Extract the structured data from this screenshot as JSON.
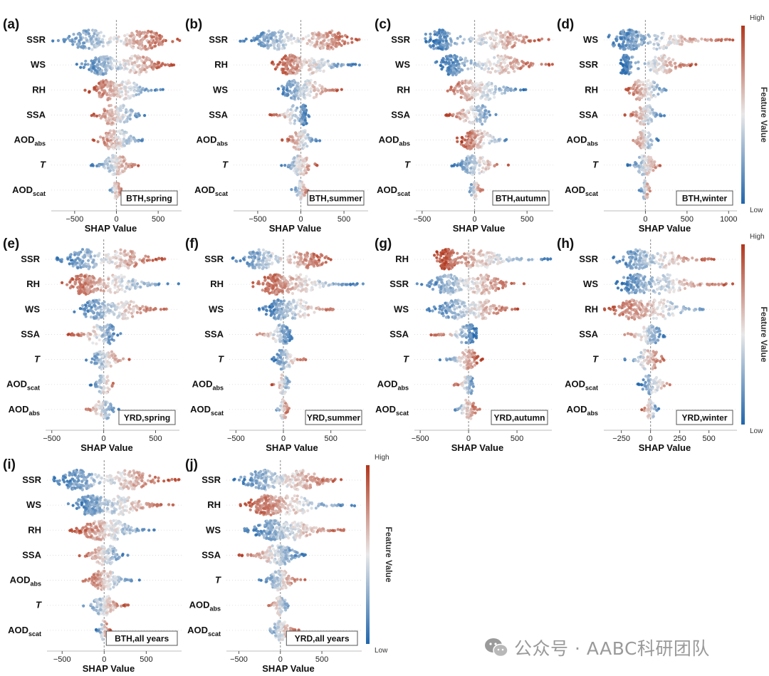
{
  "figure": {
    "colorbar_label": "Feature Value",
    "colorbar_high": "High",
    "colorbar_low": "Low",
    "xlabel": "SHAP Value",
    "colors": {
      "low": "#2166ac",
      "mid": "#e8e8e8",
      "high": "#b2361c"
    }
  },
  "watermark": {
    "text": "公众号 · AABC科研团队",
    "icon": "wechat-icon"
  },
  "chart_data": [
    {
      "id": "a",
      "panel_label": "(a)",
      "title": "BTH,spring",
      "type": "beeswarm",
      "xlabel": "SHAP Value",
      "xticks": [
        -500,
        0,
        500
      ],
      "xticklabels": [
        "−500",
        "0",
        "500"
      ],
      "xlim": [
        -780,
        780
      ],
      "features": [
        {
          "label": "SSR",
          "sub": "",
          "italic": false,
          "min": -780,
          "max": 760,
          "peak_neg": -320,
          "peak_pos": 320
        },
        {
          "label": "WS",
          "sub": "",
          "italic": false,
          "min": -480,
          "max": 720,
          "peak_neg": -180,
          "peak_pos": 250
        },
        {
          "label": "RH",
          "sub": "",
          "italic": false,
          "min": -380,
          "max": 560,
          "peak_neg": -120,
          "peak_pos": 120
        },
        {
          "label": "SSA",
          "sub": "",
          "italic": false,
          "min": -300,
          "max": 380,
          "peak_neg": -60,
          "peak_pos": 80
        },
        {
          "label": "AOD",
          "sub": "abs",
          "italic": false,
          "min": -300,
          "max": 380,
          "peak_neg": -60,
          "peak_pos": 60
        },
        {
          "label": "T",
          "sub": "",
          "italic": true,
          "min": -320,
          "max": 300,
          "peak_neg": -30,
          "peak_pos": 30
        },
        {
          "label": "AOD",
          "sub": "scat",
          "italic": false,
          "min": -120,
          "max": 80,
          "peak_neg": -10,
          "peak_pos": 10
        }
      ]
    },
    {
      "id": "b",
      "panel_label": "(b)",
      "title": "BTH,summer",
      "type": "beeswarm",
      "xlabel": "SHAP Value",
      "xticks": [
        -500,
        0,
        500
      ],
      "xticklabels": [
        "−500",
        "0",
        "500"
      ],
      "xlim": [
        -780,
        780
      ],
      "features": [
        {
          "label": "SSR",
          "sub": "",
          "italic": false,
          "min": -760,
          "max": 700,
          "peak_neg": -300,
          "peak_pos": 300
        },
        {
          "label": "RH",
          "sub": "",
          "italic": false,
          "min": -360,
          "max": 700,
          "peak_neg": -120,
          "peak_pos": 150
        },
        {
          "label": "WS",
          "sub": "",
          "italic": false,
          "min": -300,
          "max": 500,
          "peak_neg": -80,
          "peak_pos": 100
        },
        {
          "label": "SSA",
          "sub": "",
          "italic": false,
          "min": -380,
          "max": 120,
          "peak_neg": -80,
          "peak_pos": 40
        },
        {
          "label": "AOD",
          "sub": "abs",
          "italic": false,
          "min": -220,
          "max": 240,
          "peak_neg": -40,
          "peak_pos": 40
        },
        {
          "label": "T",
          "sub": "",
          "italic": true,
          "min": -250,
          "max": 220,
          "peak_neg": -30,
          "peak_pos": 30
        },
        {
          "label": "AOD",
          "sub": "scat",
          "italic": false,
          "min": -120,
          "max": 120,
          "peak_neg": -10,
          "peak_pos": 10
        }
      ]
    },
    {
      "id": "c",
      "panel_label": "(c)",
      "title": "BTH,autumn",
      "type": "beeswarm",
      "xlabel": "SHAP Value",
      "xticks": [
        -500,
        0,
        500
      ],
      "xticklabels": [
        "−500",
        "0",
        "500"
      ],
      "xlim": [
        -560,
        750
      ],
      "features": [
        {
          "label": "SSR",
          "sub": "",
          "italic": false,
          "min": -500,
          "max": 720,
          "peak_neg": -320,
          "peak_pos": 250
        },
        {
          "label": "WS",
          "sub": "",
          "italic": false,
          "min": -400,
          "max": 750,
          "peak_neg": -200,
          "peak_pos": 250
        },
        {
          "label": "RH",
          "sub": "",
          "italic": false,
          "min": -360,
          "max": 520,
          "peak_neg": -80,
          "peak_pos": 120
        },
        {
          "label": "SSA",
          "sub": "",
          "italic": false,
          "min": -280,
          "max": 220,
          "peak_neg": -50,
          "peak_pos": 60
        },
        {
          "label": "AOD",
          "sub": "abs",
          "italic": false,
          "min": -180,
          "max": 420,
          "peak_neg": -30,
          "peak_pos": 60
        },
        {
          "label": "T",
          "sub": "",
          "italic": true,
          "min": -240,
          "max": 340,
          "peak_neg": -30,
          "peak_pos": 30
        },
        {
          "label": "AOD",
          "sub": "scat",
          "italic": false,
          "min": -80,
          "max": 80,
          "peak_neg": -10,
          "peak_pos": 10
        }
      ]
    },
    {
      "id": "d",
      "panel_label": "(d)",
      "title": "BTH,winter",
      "type": "beeswarm",
      "xlabel": "SHAP Value",
      "xticks": [
        0,
        500,
        1000
      ],
      "xticklabels": [
        "0",
        "500",
        "1000"
      ],
      "xlim": [
        -500,
        1100
      ],
      "features": [
        {
          "label": "WS",
          "sub": "",
          "italic": false,
          "min": -480,
          "max": 1080,
          "peak_neg": -200,
          "peak_pos": 200
        },
        {
          "label": "SSR",
          "sub": "",
          "italic": false,
          "min": -340,
          "max": 640,
          "peak_neg": -230,
          "peak_pos": 200
        },
        {
          "label": "RH",
          "sub": "",
          "italic": false,
          "min": -260,
          "max": 330,
          "peak_neg": -80,
          "peak_pos": 60
        },
        {
          "label": "SSA",
          "sub": "",
          "italic": false,
          "min": -250,
          "max": 250,
          "peak_neg": -40,
          "peak_pos": 40
        },
        {
          "label": "AOD",
          "sub": "abs",
          "italic": false,
          "min": -200,
          "max": 180,
          "peak_neg": -30,
          "peak_pos": 30
        },
        {
          "label": "T",
          "sub": "",
          "italic": true,
          "min": -240,
          "max": 250,
          "peak_neg": -30,
          "peak_pos": 30
        },
        {
          "label": "AOD",
          "sub": "scat",
          "italic": false,
          "min": -80,
          "max": 80,
          "peak_neg": -10,
          "peak_pos": 10
        }
      ]
    },
    {
      "id": "e",
      "panel_label": "(e)",
      "title": "YRD,spring",
      "type": "beeswarm",
      "xlabel": "SHAP Value",
      "xticks": [
        -500,
        0,
        500
      ],
      "xticklabels": [
        "−500",
        "0",
        "500"
      ],
      "xlim": [
        -560,
        730
      ],
      "features": [
        {
          "label": "SSR",
          "sub": "",
          "italic": false,
          "min": -480,
          "max": 600,
          "peak_neg": -180,
          "peak_pos": 200
        },
        {
          "label": "RH",
          "sub": "",
          "italic": false,
          "min": -430,
          "max": 730,
          "peak_neg": -180,
          "peak_pos": 120
        },
        {
          "label": "WS",
          "sub": "",
          "italic": false,
          "min": -320,
          "max": 640,
          "peak_neg": -80,
          "peak_pos": 200
        },
        {
          "label": "SSA",
          "sub": "",
          "italic": false,
          "min": -350,
          "max": 180,
          "peak_neg": -80,
          "peak_pos": 50
        },
        {
          "label": "T",
          "sub": "",
          "italic": true,
          "min": -180,
          "max": 260,
          "peak_neg": -30,
          "peak_pos": 40
        },
        {
          "label": "AOD",
          "sub": "scat",
          "italic": false,
          "min": -140,
          "max": 140,
          "peak_neg": -20,
          "peak_pos": 20
        },
        {
          "label": "AOD",
          "sub": "abs",
          "italic": false,
          "min": -200,
          "max": 150,
          "peak_neg": -20,
          "peak_pos": 20
        }
      ]
    },
    {
      "id": "f",
      "panel_label": "(f)",
      "title": "YRD,summer",
      "type": "beeswarm",
      "xlabel": "SHAP Value",
      "xticks": [
        -500,
        0,
        500
      ],
      "xticklabels": [
        "−500",
        "0",
        "500"
      ],
      "xlim": [
        -570,
        870
      ],
      "features": [
        {
          "label": "SSR",
          "sub": "",
          "italic": false,
          "min": -560,
          "max": 520,
          "peak_neg": -250,
          "peak_pos": 250
        },
        {
          "label": "RH",
          "sub": "",
          "italic": false,
          "min": -320,
          "max": 880,
          "peak_neg": -80,
          "peak_pos": 150
        },
        {
          "label": "WS",
          "sub": "",
          "italic": false,
          "min": -260,
          "max": 660,
          "peak_neg": -50,
          "peak_pos": 150
        },
        {
          "label": "SSA",
          "sub": "",
          "italic": false,
          "min": -340,
          "max": 110,
          "peak_neg": -40,
          "peak_pos": 20
        },
        {
          "label": "T",
          "sub": "",
          "italic": true,
          "min": -120,
          "max": 260,
          "peak_neg": -20,
          "peak_pos": 30
        },
        {
          "label": "AOD",
          "sub": "abs",
          "italic": false,
          "min": -130,
          "max": 110,
          "peak_neg": -15,
          "peak_pos": 15
        },
        {
          "label": "AOD",
          "sub": "scat",
          "italic": false,
          "min": -100,
          "max": 70,
          "peak_neg": -10,
          "peak_pos": 10
        }
      ]
    },
    {
      "id": "g",
      "panel_label": "(g)",
      "title": "YRD,autumn",
      "type": "beeswarm",
      "xlabel": "SHAP Value",
      "xticks": [
        -500,
        0,
        500
      ],
      "xticklabels": [
        "−500",
        "0",
        "500"
      ],
      "xlim": [
        -560,
        860
      ],
      "features": [
        {
          "label": "RH",
          "sub": "",
          "italic": false,
          "min": -360,
          "max": 860,
          "peak_neg": -220,
          "peak_pos": 120
        },
        {
          "label": "SSR",
          "sub": "",
          "italic": false,
          "min": -560,
          "max": 580,
          "peak_neg": -200,
          "peak_pos": 150
        },
        {
          "label": "WS",
          "sub": "",
          "italic": false,
          "min": -440,
          "max": 540,
          "peak_neg": -150,
          "peak_pos": 150
        },
        {
          "label": "SSA",
          "sub": "",
          "italic": false,
          "min": -400,
          "max": 80,
          "peak_neg": -40,
          "peak_pos": 20
        },
        {
          "label": "T",
          "sub": "",
          "italic": true,
          "min": -330,
          "max": 150,
          "peak_neg": -30,
          "peak_pos": 20
        },
        {
          "label": "AOD",
          "sub": "abs",
          "italic": false,
          "min": -160,
          "max": 80,
          "peak_neg": -15,
          "peak_pos": 15
        },
        {
          "label": "AOD",
          "sub": "scat",
          "italic": false,
          "min": -200,
          "max": 120,
          "peak_neg": -15,
          "peak_pos": 15
        }
      ]
    },
    {
      "id": "h",
      "panel_label": "(h)",
      "title": "YRD,winter",
      "type": "beeswarm",
      "xlabel": "SHAP Value",
      "xticks": [
        -250,
        0,
        250,
        500
      ],
      "xticklabels": [
        "−250",
        "0",
        "250",
        "500"
      ],
      "xlim": [
        -400,
        740
      ],
      "features": [
        {
          "label": "SSR",
          "sub": "",
          "italic": false,
          "min": -340,
          "max": 560,
          "peak_neg": -120,
          "peak_pos": 120
        },
        {
          "label": "WS",
          "sub": "",
          "italic": false,
          "min": -340,
          "max": 740,
          "peak_neg": -120,
          "peak_pos": 120
        },
        {
          "label": "RH",
          "sub": "",
          "italic": false,
          "min": -400,
          "max": 600,
          "peak_neg": -150,
          "peak_pos": 80
        },
        {
          "label": "SSA",
          "sub": "",
          "italic": false,
          "min": -280,
          "max": 140,
          "peak_neg": -40,
          "peak_pos": 30
        },
        {
          "label": "T",
          "sub": "",
          "italic": true,
          "min": -240,
          "max": 140,
          "peak_neg": -40,
          "peak_pos": 20
        },
        {
          "label": "AOD",
          "sub": "scat",
          "italic": false,
          "min": -120,
          "max": 240,
          "peak_neg": -15,
          "peak_pos": 30
        },
        {
          "label": "AOD",
          "sub": "abs",
          "italic": false,
          "min": -80,
          "max": 80,
          "peak_neg": -10,
          "peak_pos": 10
        }
      ]
    },
    {
      "id": "i",
      "panel_label": "(i)",
      "title": "BTH,all years",
      "type": "beeswarm",
      "xlabel": "SHAP Value",
      "xticks": [
        -500,
        0,
        500
      ],
      "xticklabels": [
        "−500",
        "0",
        "500"
      ],
      "xlim": [
        -680,
        920
      ],
      "features": [
        {
          "label": "SSR",
          "sub": "",
          "italic": false,
          "min": -640,
          "max": 900,
          "peak_neg": -300,
          "peak_pos": 300
        },
        {
          "label": "WS",
          "sub": "",
          "italic": false,
          "min": -460,
          "max": 900,
          "peak_neg": -150,
          "peak_pos": 200
        },
        {
          "label": "RH",
          "sub": "",
          "italic": false,
          "min": -420,
          "max": 630,
          "peak_neg": -80,
          "peak_pos": 120
        },
        {
          "label": "SSA",
          "sub": "",
          "italic": false,
          "min": -310,
          "max": 300,
          "peak_neg": -40,
          "peak_pos": 60
        },
        {
          "label": "AOD",
          "sub": "abs",
          "italic": false,
          "min": -280,
          "max": 430,
          "peak_neg": -30,
          "peak_pos": 40
        },
        {
          "label": "T",
          "sub": "",
          "italic": true,
          "min": -280,
          "max": 310,
          "peak_neg": -30,
          "peak_pos": 30
        },
        {
          "label": "AOD",
          "sub": "scat",
          "italic": false,
          "min": -100,
          "max": 80,
          "peak_neg": -10,
          "peak_pos": 10
        }
      ]
    },
    {
      "id": "j",
      "panel_label": "(j)",
      "title": "YRD,all years",
      "type": "beeswarm",
      "xlabel": "SHAP Value",
      "xticks": [
        -500,
        0,
        500
      ],
      "xticklabels": [
        "−500",
        "0",
        "500"
      ],
      "xlim": [
        -650,
        980
      ],
      "features": [
        {
          "label": "SSR",
          "sub": "",
          "italic": false,
          "min": -620,
          "max": 780,
          "peak_neg": -200,
          "peak_pos": 250
        },
        {
          "label": "RH",
          "sub": "",
          "italic": false,
          "min": -490,
          "max": 960,
          "peak_neg": -150,
          "peak_pos": 150
        },
        {
          "label": "WS",
          "sub": "",
          "italic": false,
          "min": -470,
          "max": 850,
          "peak_neg": -100,
          "peak_pos": 150
        },
        {
          "label": "SSA",
          "sub": "",
          "italic": false,
          "min": -520,
          "max": 310,
          "peak_neg": -60,
          "peak_pos": 30
        },
        {
          "label": "T",
          "sub": "",
          "italic": true,
          "min": -270,
          "max": 300,
          "peak_neg": -30,
          "peak_pos": 30
        },
        {
          "label": "AOD",
          "sub": "abs",
          "italic": false,
          "min": -180,
          "max": 150,
          "peak_neg": -15,
          "peak_pos": 15
        },
        {
          "label": "AOD",
          "sub": "scat",
          "italic": false,
          "min": -220,
          "max": 250,
          "peak_neg": -20,
          "peak_pos": 20
        }
      ]
    }
  ]
}
